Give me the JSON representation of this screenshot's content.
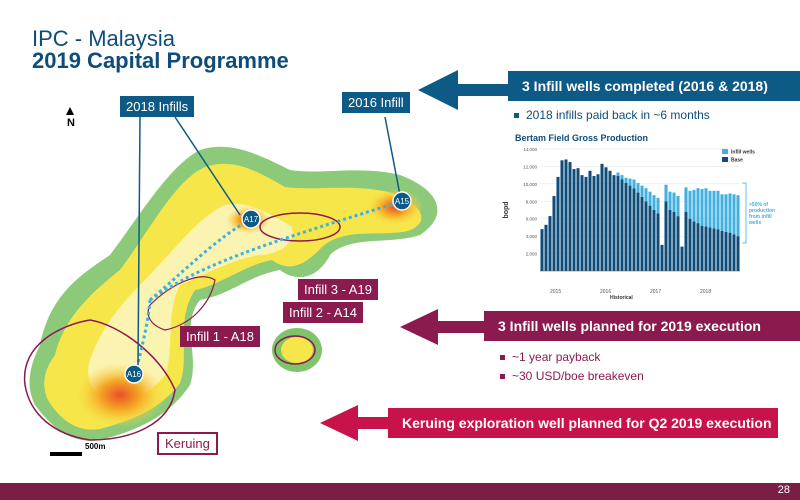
{
  "header": {
    "line1": "IPC - Malaysia",
    "line2": "2019 Capital Programme"
  },
  "map": {
    "north": "N",
    "scale": "500m",
    "labels": {
      "infills_2018": "2018 Infills",
      "infill_2016": "2016 Infill",
      "infill3": "Infill 3 - A19",
      "infill2": "Infill 2 - A14",
      "infill1": "Infill 1 - A18",
      "keruing": "Keruing"
    },
    "wells": [
      "A17",
      "A15",
      "A16"
    ]
  },
  "banners": {
    "top": "3 Infill wells completed (2016 & 2018)",
    "mid": "3 Infill wells planned for 2019 execution",
    "bottom": "Keruing exploration well planned for Q2 2019 execution"
  },
  "bullets": {
    "top": [
      "2018 infills paid back in ~6 months"
    ],
    "mid": [
      "~1 year payback",
      "~30 USD/boe breakeven"
    ]
  },
  "colors": {
    "blue": "#0e5a86",
    "maroon": "#8b1a4e",
    "base": "#0e4d7a",
    "infill": "#3fb0df"
  },
  "chart_data": {
    "type": "bar",
    "title": "Bertam Field Gross Production",
    "ylabel": "bopd",
    "xlabel": "Historical",
    "ylim": [
      0,
      14000
    ],
    "yticks": [
      2000,
      4000,
      6000,
      8000,
      10000,
      12000,
      14000
    ],
    "year_labels": [
      "2015",
      "2016",
      "2017",
      "2018"
    ],
    "annotation": ">50% of production from infill wells",
    "series": [
      {
        "name": "Infill wells",
        "values": [
          0,
          0,
          0,
          0,
          0,
          0,
          0,
          0,
          0,
          0,
          0,
          0,
          0,
          0,
          0,
          0,
          0,
          0,
          0,
          400,
          500,
          600,
          800,
          1000,
          1100,
          1300,
          1500,
          1600,
          1700,
          1800,
          0,
          1900,
          2100,
          2200,
          2300,
          0,
          2800,
          3200,
          3600,
          4000,
          4200,
          4400,
          4200,
          4300,
          4400,
          4200,
          4300,
          4500,
          4600,
          4700
        ]
      },
      {
        "name": "Base",
        "values": [
          4800,
          5300,
          6300,
          8600,
          10800,
          12700,
          12800,
          12500,
          11700,
          11800,
          11000,
          10800,
          11500,
          10900,
          11100,
          12300,
          11900,
          11500,
          11000,
          10900,
          10500,
          10100,
          9800,
          9500,
          9000,
          8500,
          8000,
          7500,
          7000,
          6600,
          3000,
          8000,
          7000,
          6800,
          6300,
          2800,
          6800,
          6000,
          5700,
          5500,
          5200,
          5100,
          5000,
          4900,
          4800,
          4600,
          4500,
          4400,
          4200,
          4000
        ]
      }
    ]
  },
  "page": {
    "number": "28"
  }
}
